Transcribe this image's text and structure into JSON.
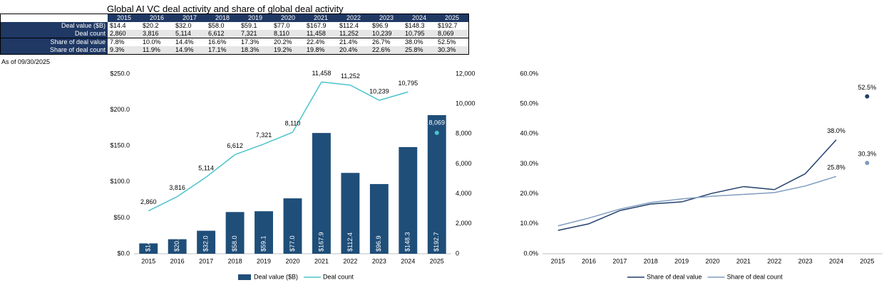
{
  "title": "Global AI VC deal activity and share of global deal activity",
  "note": "As of 09/30/2025",
  "chart_data": [
    {
      "type": "bar_line",
      "categories": [
        "2015",
        "2016",
        "2017",
        "2018",
        "2019",
        "2020",
        "2021",
        "2022",
        "2023",
        "2024",
        "2025"
      ],
      "series": [
        {
          "name": "Deal value ($B)",
          "color": "#1f4e79",
          "values": [
            14.4,
            20.2,
            32.0,
            58.0,
            59.1,
            77.0,
            167.9,
            112.4,
            96.9,
            148.3,
            192.7
          ],
          "value_labels": [
            "$14.4",
            "$20.2",
            "$32.0",
            "$58.0",
            "$59.1",
            "$77.0",
            "$167.9",
            "$112.4",
            "$96.9",
            "$148.3",
            "$192.7"
          ]
        },
        {
          "name": "Deal count",
          "color": "#4cc3cc",
          "axis": "y2",
          "values": [
            2860,
            3816,
            5114,
            6612,
            7321,
            8110,
            11458,
            11252,
            10239,
            10795,
            8069
          ],
          "value_labels": [
            "2,860",
            "3,816",
            "5,114",
            "6,612",
            "7,321",
            "8,110",
            "11,458",
            "11,252",
            "10,239",
            "10,795",
            "8,069"
          ]
        }
      ],
      "ylim": [
        0,
        250
      ],
      "yticks": [
        {
          "value": 0,
          "label": "$0.0"
        },
        {
          "value": 50,
          "label": "$50.0"
        },
        {
          "value": 100,
          "label": "$100.0"
        },
        {
          "value": 150,
          "label": "$150.0"
        },
        {
          "value": 200,
          "label": "$200.0"
        },
        {
          "value": 250,
          "label": "$250.0"
        }
      ],
      "y2lim": [
        0,
        12000
      ],
      "y2ticks": [
        0,
        {
          "value": 2000,
          "label": "2,000"
        },
        {
          "value": 4000,
          "label": "4,000"
        },
        {
          "value": 6000,
          "label": "6,000"
        },
        {
          "value": 8000,
          "label": "8,000"
        },
        {
          "value": 10000,
          "label": "10,000"
        },
        {
          "value": 12000,
          "label": "12,000"
        }
      ],
      "separate_last": true
    },
    {
      "type": "line",
      "categories": [
        "2015",
        "2016",
        "2017",
        "2018",
        "2019",
        "2020",
        "2021",
        "2022",
        "2023",
        "2024",
        "2025"
      ],
      "series": [
        {
          "name": "Share of deal value",
          "color": "#203f6b",
          "values": [
            7.8,
            10.0,
            14.4,
            16.6,
            17.3,
            20.2,
            22.4,
            21.4,
            26.7,
            38.0,
            52.5
          ],
          "value_labels": [
            "7.8%",
            "10.0%",
            "14.4%",
            "16.6%",
            "17.3%",
            "20.2%",
            "22.4%",
            "21.4%",
            "26.7%",
            "38.0%",
            "52.5%"
          ]
        },
        {
          "name": "Share of deal count",
          "color": "#7f9cbf",
          "values": [
            9.3,
            11.9,
            14.9,
            17.1,
            18.3,
            19.2,
            19.8,
            20.4,
            22.6,
            25.8,
            30.3
          ],
          "value_labels": [
            "9.3%",
            "11.9%",
            "14.9%",
            "17.1%",
            "18.3%",
            "19.2%",
            "19.8%",
            "20.4%",
            "22.6%",
            "25.8%",
            "30.3%"
          ]
        }
      ],
      "ylim": [
        0,
        60
      ],
      "yticks": [
        {
          "value": 0,
          "label": "0.0%"
        },
        {
          "value": 10,
          "label": "10.0%"
        },
        {
          "value": 20,
          "label": "20.0%"
        },
        {
          "value": 30,
          "label": "30.0%"
        },
        {
          "value": 40,
          "label": "40.0%"
        },
        {
          "value": 50,
          "label": "50.0%"
        },
        {
          "value": 60,
          "label": "60.0%"
        }
      ],
      "separate_last": true
    }
  ]
}
